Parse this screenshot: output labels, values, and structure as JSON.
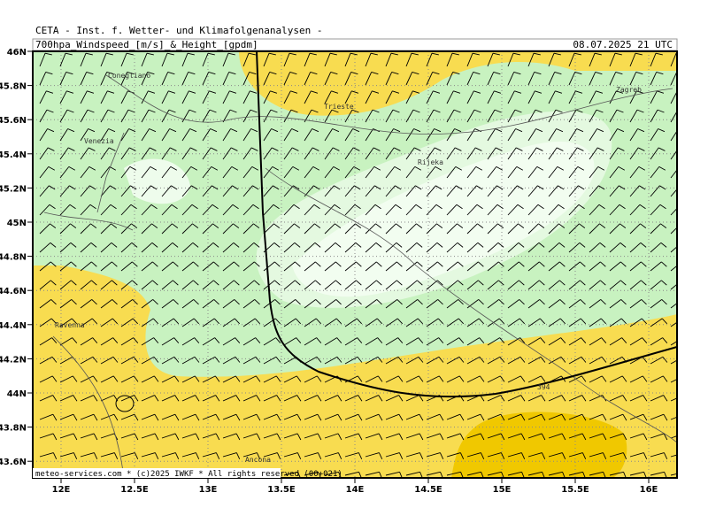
{
  "header": {
    "source": "CETA - Inst. f. Wetter- und Klimafolgenanalysen -",
    "product": "700hpa_Windspeed_[m/s]_&_Height_[gpdm]",
    "valid_time": "08.07.2025 21 UTC"
  },
  "lat_labels": [
    "46N",
    "45.8N",
    "45.6N",
    "45.4N",
    "45.2N",
    "45N",
    "44.8N",
    "44.6N",
    "44.4N",
    "44.2N",
    "44N",
    "43.8N",
    "43.6N"
  ],
  "lon_labels": [
    "12E",
    "12.5E",
    "13E",
    "13.5E",
    "14E",
    "14.5E",
    "15E",
    "15.5E",
    "16E"
  ],
  "places": [
    "Conegliano",
    "Venezia",
    "Trieste",
    "Rijeka",
    "Zagreb",
    "Ravenna",
    "Ancona"
  ],
  "contour_label": "394",
  "footer": "meteo-services.com * (c)2025 IWKF * All rights reserved (00+021)"
}
